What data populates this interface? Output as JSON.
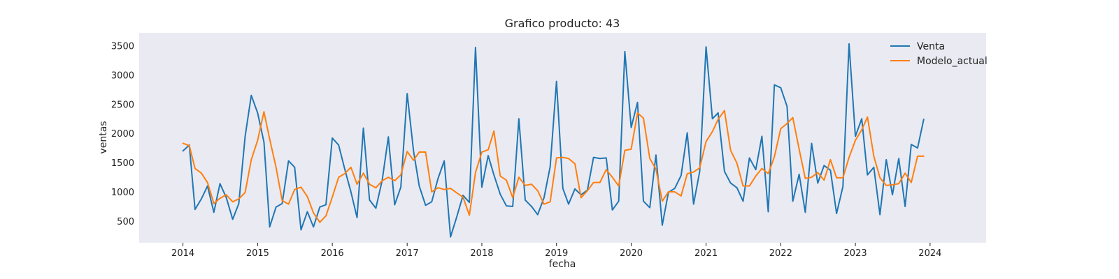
{
  "chart_data": {
    "type": "line",
    "title": "Grafico producto: 43",
    "xlabel": "fecha",
    "ylabel": "ventas",
    "xlim": [
      "2013-06-01",
      "2024-10-01"
    ],
    "ylim": [
      130,
      3720
    ],
    "x_ticks": [
      "2014",
      "2015",
      "2016",
      "2017",
      "2018",
      "2019",
      "2020",
      "2021",
      "2022",
      "2023",
      "2024"
    ],
    "y_ticks": [
      500,
      1000,
      1500,
      2000,
      2500,
      3000,
      3500
    ],
    "grid": false,
    "legend_position": "top-right",
    "plot_background": "#eaeaf2",
    "x": [
      "2014-01",
      "2014-02",
      "2014-03",
      "2014-04",
      "2014-05",
      "2014-06",
      "2014-07",
      "2014-08",
      "2014-09",
      "2014-10",
      "2014-11",
      "2014-12",
      "2015-01",
      "2015-02",
      "2015-03",
      "2015-04",
      "2015-05",
      "2015-06",
      "2015-07",
      "2015-08",
      "2015-09",
      "2015-10",
      "2015-11",
      "2015-12",
      "2016-01",
      "2016-02",
      "2016-03",
      "2016-04",
      "2016-05",
      "2016-06",
      "2016-07",
      "2016-08",
      "2016-09",
      "2016-10",
      "2016-11",
      "2016-12",
      "2017-01",
      "2017-02",
      "2017-03",
      "2017-04",
      "2017-05",
      "2017-06",
      "2017-07",
      "2017-08",
      "2017-09",
      "2017-10",
      "2017-11",
      "2017-12",
      "2018-01",
      "2018-02",
      "2018-03",
      "2018-04",
      "2018-05",
      "2018-06",
      "2018-07",
      "2018-08",
      "2018-09",
      "2018-10",
      "2018-11",
      "2018-12",
      "2019-01",
      "2019-02",
      "2019-03",
      "2019-04",
      "2019-05",
      "2019-06",
      "2019-07",
      "2019-08",
      "2019-09",
      "2019-10",
      "2019-11",
      "2019-12",
      "2020-01",
      "2020-02",
      "2020-03",
      "2020-04",
      "2020-05",
      "2020-06",
      "2020-07",
      "2020-08",
      "2020-09",
      "2020-10",
      "2020-11",
      "2020-12",
      "2021-01",
      "2021-02",
      "2021-03",
      "2021-04",
      "2021-05",
      "2021-06",
      "2021-07",
      "2021-08",
      "2021-09",
      "2021-10",
      "2021-11",
      "2021-12",
      "2022-01",
      "2022-02",
      "2022-03",
      "2022-04",
      "2022-05",
      "2022-06",
      "2022-07",
      "2022-08",
      "2022-09",
      "2022-10",
      "2022-11",
      "2022-12",
      "2023-01",
      "2023-02",
      "2023-03",
      "2023-04",
      "2023-05",
      "2023-06",
      "2023-07",
      "2023-08",
      "2023-09",
      "2023-10",
      "2023-11",
      "2023-12"
    ],
    "series": [
      {
        "name": "Venta",
        "color": "#1f77b4",
        "values": [
          1700,
          1800,
          700,
          880,
          1100,
          650,
          1140,
          900,
          530,
          800,
          1950,
          2650,
          2350,
          1850,
          400,
          740,
          800,
          1530,
          1420,
          350,
          660,
          400,
          740,
          780,
          1920,
          1800,
          1400,
          1000,
          560,
          2090,
          860,
          720,
          1200,
          1940,
          780,
          1080,
          2680,
          1700,
          1100,
          770,
          830,
          1230,
          1530,
          230,
          580,
          940,
          820,
          3470,
          1080,
          1620,
          1290,
          960,
          760,
          750,
          2250,
          860,
          750,
          610,
          900,
          1430,
          2890,
          1060,
          790,
          1050,
          950,
          1030,
          1590,
          1570,
          1580,
          690,
          840,
          3400,
          2100,
          2530,
          840,
          730,
          1630,
          430,
          990,
          1060,
          1280,
          2010,
          790,
          1350,
          3480,
          2250,
          2350,
          1350,
          1150,
          1070,
          840,
          1580,
          1380,
          1950,
          660,
          2830,
          2780,
          2460,
          840,
          1300,
          650,
          1830,
          1150,
          1450,
          1370,
          630,
          1090,
          3530,
          1950,
          2250,
          1290,
          1420,
          610,
          1550,
          950,
          1570,
          750,
          1810,
          1750,
          2240
        ]
      },
      {
        "name": "Modelo_actual",
        "color": "#ff7f0e",
        "values": [
          1830,
          1790,
          1400,
          1320,
          1160,
          800,
          890,
          950,
          830,
          880,
          990,
          1550,
          1880,
          2370,
          1900,
          1420,
          850,
          790,
          1040,
          1080,
          920,
          640,
          480,
          590,
          910,
          1250,
          1310,
          1420,
          1130,
          1320,
          1130,
          1070,
          1190,
          1250,
          1190,
          1290,
          1690,
          1540,
          1680,
          1680,
          1000,
          1070,
          1040,
          1060,
          980,
          910,
          600,
          1330,
          1680,
          1720,
          2040,
          1270,
          1200,
          900,
          1250,
          1110,
          1130,
          1020,
          790,
          830,
          1580,
          1590,
          1570,
          1480,
          900,
          1020,
          1160,
          1160,
          1380,
          1250,
          1100,
          1710,
          1730,
          2350,
          2260,
          1570,
          1390,
          840,
          1000,
          1000,
          930,
          1310,
          1340,
          1410,
          1860,
          2030,
          2240,
          2390,
          1710,
          1490,
          1100,
          1100,
          1270,
          1400,
          1310,
          1600,
          2080,
          2170,
          2270,
          1730,
          1230,
          1250,
          1330,
          1200,
          1550,
          1240,
          1240,
          1590,
          1880,
          2060,
          2280,
          1610,
          1240,
          1110,
          1120,
          1140,
          1320,
          1160,
          1610,
          1610
        ]
      }
    ]
  }
}
